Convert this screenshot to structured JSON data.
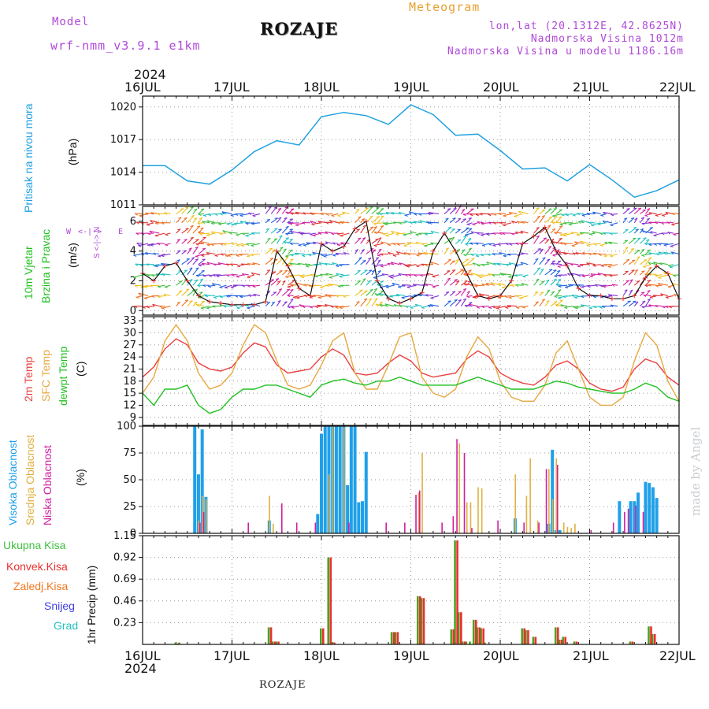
{
  "header": {
    "model_label": "Model",
    "model_name": "wrf-nmm_v3.9.1  e1km",
    "station": "ROZAJE",
    "meteogram": "Meteogram",
    "lonlat": "lon,lat (20.1312E, 42.8625N)",
    "elev": "Nadmorska Visina 1012m",
    "elev_model": "Nadmorska Visina u modelu 1186.16m"
  },
  "axis": {
    "year_top": "2024",
    "year_bottom": "2024",
    "dates": [
      "16JUL",
      "17JUL",
      "18JUL",
      "19JUL",
      "20JUL",
      "21JUL",
      "22JUL"
    ]
  },
  "labels": {
    "p1_title": "Pritisak na nivou mora",
    "p1_unit": "(hPa)",
    "p2_a": "10m Vjetar",
    "p2_b": "Brzina i Pravac",
    "p2_unit": "(m/s)",
    "p2_compass_top": "S <-|-> N",
    "p2_compass_left": "W",
    "p2_compass_mid": "<-|->",
    "p2_compass_right": "E",
    "p3_a": "2m Temp",
    "p3_b": "SFC Temp",
    "p3_c": "dewpt Temp",
    "p3_unit": "(C)",
    "p4_a": "Visoka Oblacnost",
    "p4_b": "Srednja Oblacnost",
    "p4_c": "Niska Oblacnost",
    "p4_unit": "(%)",
    "p5_title": "1hr Precip (mm)",
    "leg_total": "Ukupna Kisa",
    "leg_conv": "Konvek.Kisa",
    "leg_frz": "Zaledj.Kisa",
    "leg_snow": "Snijeg",
    "leg_grad": "Grad",
    "footer": "ROZAJE",
    "watermark": "made by Angel"
  },
  "colors": {
    "pressure": "#20a0e0",
    "t2m": "#e84040",
    "tsfc": "#e8a840",
    "dewpt": "#20c020",
    "cloud_high": "#20a0e8",
    "cloud_mid": "#e0b040",
    "cloud_low": "#d020a0",
    "precip_total": "#50a020",
    "precip_conv": "#e83030",
    "precip_frz": "#f07820",
    "snow": "#4040e0",
    "grad": "#20c0c0",
    "purple": "#b048d8",
    "orange": "#e8a030"
  },
  "chart_data": [
    {
      "type": "line",
      "name": "pressure",
      "ylim": [
        1011,
        1021
      ],
      "yticks": [
        1011,
        1014,
        1017,
        1020
      ],
      "x": [
        0,
        6,
        12,
        18,
        24,
        30,
        36,
        42,
        48,
        54,
        60,
        66,
        72,
        78,
        84,
        90,
        96,
        102,
        108,
        114,
        120,
        126,
        132,
        138,
        144
      ],
      "values": [
        1014.6,
        1014.6,
        1013.2,
        1012.9,
        1014.2,
        1015.9,
        1016.9,
        1016.5,
        1019.1,
        1019.5,
        1019.2,
        1018.4,
        1020.2,
        1019.3,
        1017.4,
        1017.5,
        1016.0,
        1014.3,
        1014.4,
        1013.2,
        1014.7,
        1013.3,
        1011.7,
        1012.3,
        1013.3
      ]
    },
    {
      "type": "line",
      "name": "wind speed",
      "ylim": [
        -0.3,
        7
      ],
      "yticks": [
        0,
        2,
        4,
        6
      ],
      "x": [
        0,
        3,
        6,
        9,
        12,
        15,
        18,
        21,
        24,
        27,
        30,
        33,
        36,
        39,
        42,
        45,
        48,
        51,
        54,
        57,
        60,
        63,
        66,
        69,
        72,
        75,
        78,
        81,
        84,
        87,
        90,
        93,
        96,
        99,
        102,
        105,
        108,
        111,
        114,
        117,
        120,
        123,
        126,
        129,
        132,
        135,
        138,
        141,
        144
      ],
      "values": [
        2.5,
        2.0,
        3.0,
        3.2,
        2.0,
        1.0,
        0.6,
        0.5,
        0.4,
        0.4,
        0.4,
        0.6,
        4.0,
        3.0,
        1.5,
        1.0,
        4.5,
        4.0,
        4.3,
        5.5,
        6.0,
        2.0,
        0.8,
        0.5,
        0.8,
        1.2,
        4.0,
        5.2,
        4.0,
        2.5,
        1.0,
        0.8,
        1.0,
        2.0,
        4.5,
        5.0,
        5.6,
        4.0,
        3.0,
        1.5,
        1.0,
        1.0,
        0.8,
        0.8,
        1.0,
        2.2,
        3.0,
        2.5,
        0.8
      ]
    },
    {
      "type": "line",
      "name": "temperature",
      "ylim": [
        7,
        34
      ],
      "yticks": [
        9,
        12,
        15,
        18,
        21,
        24,
        27,
        30,
        33
      ],
      "x": [
        0,
        3,
        6,
        9,
        12,
        15,
        18,
        21,
        24,
        27,
        30,
        33,
        36,
        39,
        42,
        45,
        48,
        51,
        54,
        57,
        60,
        63,
        66,
        69,
        72,
        75,
        78,
        81,
        84,
        87,
        90,
        93,
        96,
        99,
        102,
        105,
        108,
        111,
        114,
        117,
        120,
        123,
        126,
        129,
        132,
        135,
        138,
        141,
        144
      ],
      "series": [
        {
          "name": "2m Temp",
          "values": [
            19,
            21.5,
            26,
            28.5,
            27,
            22.5,
            21,
            20.5,
            21.5,
            25,
            27.5,
            26.5,
            22,
            20,
            20.5,
            21,
            24,
            26,
            24.5,
            20,
            19.5,
            20,
            22.5,
            24.5,
            23,
            20,
            19,
            19.5,
            20,
            23.5,
            25.5,
            24,
            20,
            18.5,
            17.5,
            17,
            19,
            22,
            23,
            21,
            17.5,
            16,
            15.5,
            16.5,
            21,
            23.5,
            22.5,
            19,
            17
          ]
        },
        {
          "name": "SFC Temp",
          "values": [
            15,
            19,
            28,
            32,
            28,
            20,
            16,
            17,
            20,
            27,
            32,
            30,
            23,
            17,
            16,
            17,
            22,
            28,
            30,
            20,
            16,
            16,
            22,
            29,
            30,
            19,
            15,
            14,
            16,
            24,
            29,
            26,
            18,
            14,
            13,
            13,
            17,
            25,
            28,
            21,
            14,
            12,
            12,
            14,
            23,
            30,
            27,
            18,
            13
          ]
        },
        {
          "name": "dewpt Temp",
          "values": [
            15,
            12,
            16,
            16,
            17,
            12,
            10,
            11,
            14,
            16,
            16,
            17,
            17,
            16,
            15,
            14,
            17,
            18,
            18.5,
            17.5,
            17,
            18,
            18,
            19,
            18,
            17,
            17,
            17,
            17,
            18,
            19,
            18,
            17,
            16,
            16,
            16,
            17,
            18,
            17.5,
            16.5,
            16,
            15.5,
            15,
            15,
            16,
            17.5,
            16.5,
            14,
            13
          ]
        }
      ]
    },
    {
      "type": "bar",
      "name": "cloud cover",
      "ylim": [
        0,
        100
      ],
      "yticks": [
        0,
        25,
        50,
        75,
        100
      ],
      "series": [
        {
          "name": "Visoka Oblacnost",
          "x": [
            14,
            15,
            16,
            17,
            34,
            47,
            48,
            49,
            50,
            51,
            52,
            53,
            54,
            55,
            56,
            57,
            58,
            59,
            60,
            100,
            109,
            110,
            111,
            112,
            128,
            131,
            132,
            133,
            135,
            136,
            137,
            138
          ],
          "values": [
            100,
            55,
            97,
            34,
            12,
            18,
            93,
            100,
            100,
            100,
            100,
            100,
            100,
            45,
            100,
            100,
            29,
            30,
            76,
            14,
            9,
            78,
            3,
            3,
            30,
            30,
            30,
            38,
            48,
            47,
            43,
            33
          ]
        },
        {
          "name": "Srednja Oblacnost",
          "x": [
            15,
            16,
            17,
            34,
            35,
            50,
            51,
            54,
            74,
            75,
            85,
            87,
            88,
            90,
            91,
            100,
            103,
            104,
            106,
            109,
            110,
            111,
            113,
            114,
            115,
            116
          ],
          "values": [
            12,
            35,
            32,
            35,
            9,
            55,
            100,
            99,
            38,
            75,
            84,
            29,
            29,
            43,
            42,
            55,
            35,
            70,
            12,
            60,
            32,
            70,
            10,
            6,
            5,
            9
          ],
          "flat": 1
        },
        {
          "name": "Niska Oblacnost",
          "x": [
            15,
            16,
            28,
            37,
            41,
            46,
            55,
            65,
            70,
            73,
            74,
            80,
            83,
            84,
            86,
            88,
            95,
            102,
            106,
            108,
            111,
            120,
            126,
            129,
            130,
            132,
            134
          ],
          "values": [
            10,
            20,
            10,
            28,
            10,
            10,
            10,
            10,
            10,
            36,
            40,
            10,
            16,
            88,
            75,
            5,
            12,
            10,
            10,
            60,
            64,
            3,
            10,
            20,
            23,
            26,
            20
          ],
          "flat": 1
        }
      ]
    },
    {
      "type": "bar",
      "name": "1hr precip",
      "ylim": [
        0,
        1.15
      ],
      "yticks": [
        0.23,
        0.46,
        0.69,
        0.92,
        1.15
      ],
      "series": [
        {
          "name": "Ukupna Kisa",
          "x": [
            9,
            10,
            34,
            35,
            36,
            48,
            50,
            51,
            67,
            68,
            74,
            75,
            83,
            84,
            85,
            86,
            87,
            88,
            89,
            90,
            91,
            92,
            102,
            103,
            105,
            111,
            112,
            113,
            116,
            131,
            136,
            137
          ],
          "values": [
            0.02,
            0.02,
            0.18,
            0.03,
            0.03,
            0.17,
            0.92,
            0.02,
            0.13,
            0.13,
            0.51,
            0.49,
            0.16,
            1.1,
            0.34,
            0.03,
            0.03,
            0.03,
            0.26,
            0.18,
            0.17,
            0.02,
            0.17,
            0.15,
            0.08,
            0.18,
            0.05,
            0.08,
            0.03,
            0.03,
            0.19,
            0.11
          ]
        },
        {
          "name": "Konvek.Kisa",
          "x": [
            9,
            34,
            35,
            36,
            48,
            50,
            51,
            67,
            68,
            74,
            75,
            83,
            84,
            85,
            86,
            89,
            90,
            91,
            102,
            103,
            105,
            111,
            112,
            113,
            116,
            131,
            136,
            137
          ],
          "values": [
            0.01,
            0.18,
            0.03,
            0.03,
            0.17,
            0.92,
            0.02,
            0.13,
            0.13,
            0.51,
            0.49,
            0.16,
            1.1,
            0.34,
            0.03,
            0.26,
            0.18,
            0.17,
            0.17,
            0.15,
            0.08,
            0.18,
            0.05,
            0.08,
            0.03,
            0.03,
            0.19,
            0.11
          ]
        }
      ]
    }
  ]
}
